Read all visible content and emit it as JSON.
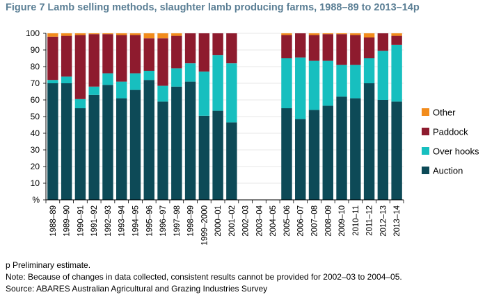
{
  "title": "Figure 7 Lamb selling methods, slaughter lamb producing farms, 1988–89 to 2013–14p",
  "notes": [
    "p Preliminary estimate.",
    "Note: Because of changes in data collected, consistent results cannot be provided for 2002–03 to 2004–05.",
    "Source: ABARES Australian Agricultural and Grazing Industries Survey"
  ],
  "chart_data": {
    "type": "bar",
    "stacked": true,
    "title": "Figure 7 Lamb selling methods, slaughter lamb producing farms, 1988–89 to 2013–14p",
    "xlabel": "",
    "ylabel": "%",
    "ylim": [
      0,
      100
    ],
    "yticks": [
      "%",
      "10",
      "20",
      "30",
      "40",
      "50",
      "60",
      "70",
      "80",
      "90",
      "100"
    ],
    "legend_position": "right",
    "categories": [
      "1988–89",
      "1989–90",
      "1990–91",
      "1991–92",
      "1992–93",
      "1993–94",
      "1994–95",
      "1995–96",
      "1996–97",
      "1997–98",
      "1998–99",
      "1999–2000",
      "2000–01",
      "2001–02",
      "2002–03",
      "2003–04",
      "2004–05",
      "2005–06",
      "2006–07",
      "2007–08",
      "2008–09",
      "2009–10",
      "2010–11",
      "2011–12",
      "2012–13",
      "2013–14"
    ],
    "series": [
      {
        "name": "Auction",
        "color": "#0d4a57",
        "values": [
          70,
          70,
          55,
          63,
          69,
          61,
          66,
          72,
          59,
          68,
          71,
          50.5,
          53.5,
          46.5,
          null,
          null,
          null,
          55,
          48.5,
          54,
          56.5,
          62,
          61,
          70,
          60,
          59
        ]
      },
      {
        "name": "Over hooks",
        "color": "#17bfbf",
        "values": [
          2,
          4,
          5.5,
          5,
          7,
          10,
          10,
          5.5,
          9.5,
          11,
          11,
          26.5,
          33.5,
          35.5,
          null,
          null,
          null,
          30,
          37,
          29.5,
          27,
          19,
          20,
          15,
          29.5,
          34
        ]
      },
      {
        "name": "Paddock",
        "color": "#8e1b2e",
        "values": [
          26,
          24.5,
          38.5,
          31.5,
          23.5,
          28,
          23,
          19.5,
          28.5,
          19.5,
          18,
          23,
          13,
          18,
          null,
          null,
          null,
          14,
          14.5,
          15.5,
          16,
          18.5,
          18,
          12.5,
          10.5,
          5.5
        ]
      },
      {
        "name": "Other",
        "color": "#f28c1c",
        "values": [
          2,
          1.5,
          1,
          0.5,
          0.5,
          1,
          1,
          3,
          3,
          1.5,
          0,
          0,
          0,
          0,
          null,
          null,
          null,
          1,
          0,
          1,
          0.5,
          0.5,
          1,
          2.5,
          0,
          1.5
        ]
      }
    ]
  }
}
